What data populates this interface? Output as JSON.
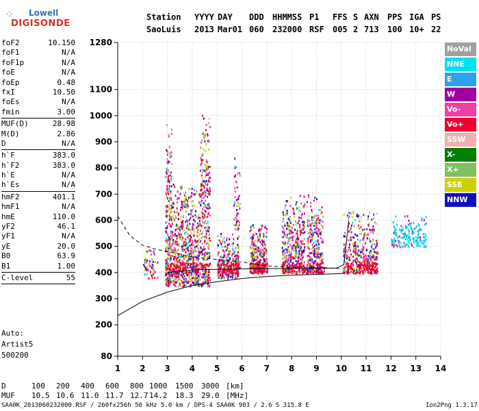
{
  "logo": {
    "line1": "Lowell",
    "line2": "DIGISONDE"
  },
  "header": {
    "labels": [
      "Station",
      "YYYY",
      "DAY",
      "DDD",
      "HHMMSS",
      "P1",
      "FFS",
      "S",
      "AXN",
      "PPS",
      "IGA",
      "PS"
    ],
    "values": [
      "SaoLuis",
      "2013",
      "Mar01",
      "060",
      "232000",
      "RSF",
      "005",
      "2",
      "713",
      "100",
      "10+",
      "22"
    ]
  },
  "params": [
    [
      {
        "k": "foF2",
        "v": "10.150"
      },
      {
        "k": "foF1",
        "v": "N/A"
      },
      {
        "k": "foF1p",
        "v": "N/A"
      },
      {
        "k": "foE",
        "v": "N/A"
      },
      {
        "k": "foEp",
        "v": "0.48"
      },
      {
        "k": "fxI",
        "v": "10.50"
      },
      {
        "k": "foEs",
        "v": "N/A"
      },
      {
        "k": "fmin",
        "v": "3.00"
      }
    ],
    [
      {
        "k": "MUF(D)",
        "v": "28.98"
      },
      {
        "k": "M(D)",
        "v": "2.86"
      },
      {
        "k": "D",
        "v": "N/A"
      }
    ],
    [
      {
        "k": "h`F",
        "v": "383.0"
      },
      {
        "k": "h`F2",
        "v": "383.0"
      },
      {
        "k": "h`E",
        "v": "N/A"
      },
      {
        "k": "h`Es",
        "v": "N/A"
      }
    ],
    [
      {
        "k": "hmF2",
        "v": "401.1"
      },
      {
        "k": "hmF1",
        "v": "N/A"
      },
      {
        "k": "hmE",
        "v": "110.0"
      },
      {
        "k": "yF2",
        "v": "46.1"
      },
      {
        "k": "yF1",
        "v": "N/A"
      },
      {
        "k": "yE",
        "v": "20.0"
      },
      {
        "k": "B0",
        "v": "63.9"
      },
      {
        "k": "B1",
        "v": "1.00"
      }
    ],
    [
      {
        "k": "C-level",
        "v": "55"
      }
    ]
  ],
  "auto": [
    "Auto:",
    "Artist5",
    "500200"
  ],
  "legend": [
    {
      "label": "NoVal",
      "color": "#a0a0a0"
    },
    {
      "label": "NNE",
      "color": "#00e0f0"
    },
    {
      "label": "E",
      "color": "#30a0f0"
    },
    {
      "label": "W",
      "color": "#a000a0"
    },
    {
      "label": "Vo-",
      "color": "#f040a0"
    },
    {
      "label": "Vo+",
      "color": "#f00030"
    },
    {
      "label": "SSW",
      "color": "#f0b0b0"
    },
    {
      "label": "X-",
      "color": "#008000"
    },
    {
      "label": "X+",
      "color": "#80c060"
    },
    {
      "label": "SSE",
      "color": "#d0d000"
    },
    {
      "label": "NNW",
      "color": "#1010c0"
    }
  ],
  "chart_data": {
    "type": "scatter",
    "x_ticks": [
      1,
      2,
      3,
      4,
      5,
      6,
      7,
      8,
      9,
      10,
      11,
      12,
      13,
      14
    ],
    "y_ticks": [
      80,
      200,
      300,
      400,
      500,
      600,
      700,
      800,
      900,
      1000,
      1100,
      1280
    ],
    "xlim": [
      1,
      14
    ],
    "ylim": [
      80,
      1280
    ],
    "grid": true,
    "clusters": [
      {
        "x": [
          2.0,
          2.6
        ],
        "y": [
          380,
          500
        ],
        "n": 60
      },
      {
        "x": [
          2.9,
          3.15
        ],
        "y": [
          350,
          1000
        ],
        "n": 260
      },
      {
        "x": [
          3.15,
          4.7
        ],
        "y": [
          350,
          740
        ],
        "n": 900
      },
      {
        "x": [
          4.3,
          4.7
        ],
        "y": [
          700,
          1040
        ],
        "n": 120
      },
      {
        "x": [
          5.0,
          5.85
        ],
        "y": [
          380,
          560
        ],
        "n": 260
      },
      {
        "x": [
          5.65,
          5.9
        ],
        "y": [
          560,
          900
        ],
        "n": 50
      },
      {
        "x": [
          6.3,
          7.0
        ],
        "y": [
          400,
          600
        ],
        "n": 260
      },
      {
        "x": [
          7.6,
          8.5
        ],
        "y": [
          400,
          700
        ],
        "n": 380
      },
      {
        "x": [
          8.6,
          9.25
        ],
        "y": [
          400,
          700
        ],
        "n": 260
      },
      {
        "x": [
          10.05,
          11.45
        ],
        "y": [
          400,
          640
        ],
        "n": 380
      },
      {
        "x": [
          12.0,
          13.4
        ],
        "y": [
          500,
          620
        ],
        "n": 180
      }
    ],
    "curves": [
      {
        "style": "solid",
        "x": [
          1,
          2,
          3,
          4,
          5,
          6,
          7,
          8,
          9,
          10,
          10.15
        ],
        "y": [
          235,
          290,
          325,
          350,
          365,
          377,
          385,
          390,
          393,
          396,
          400
        ]
      },
      {
        "style": "solid",
        "x": [
          3,
          4,
          5,
          6,
          7,
          8,
          9,
          9.8,
          10.1,
          10.15,
          10.3
        ],
        "y": [
          400,
          410,
          412,
          414,
          415,
          415,
          416,
          417,
          430,
          470,
          600
        ]
      },
      {
        "style": "dashed",
        "x": [
          1,
          1.5,
          2,
          2.5,
          3,
          3.5,
          4,
          5,
          6,
          7,
          8,
          9,
          10
        ],
        "y": [
          615,
          540,
          505,
          490,
          480,
          470,
          460,
          450,
          440,
          425,
          420,
          420,
          415
        ]
      }
    ]
  },
  "footer": {
    "d_label": "D",
    "d_values": [
      "100",
      "200",
      "400",
      "600",
      "800",
      "1000",
      "1500",
      "3000",
      "[km]"
    ],
    "muf_label": "MUF",
    "muf_values": [
      "10.5",
      "10.6",
      "11.0",
      "11.7",
      "12.7",
      "14.2",
      "18.3",
      "29.0",
      "[MHz]"
    ],
    "file_line": "SAA0K_2013060232000.RSF / 260fx256h 50 kHz 5.0 km / DPS-4 SAA0K 903 / 2.6 S 315.8 E",
    "version": "Ion2Png 1.3.17"
  }
}
